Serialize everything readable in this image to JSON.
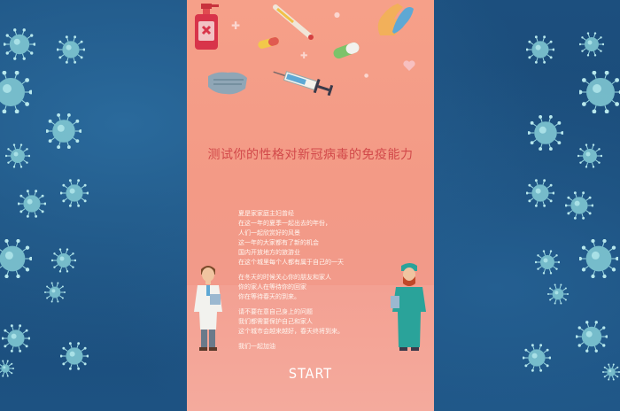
{
  "title": "测试你的性格对新冠病毒的免疫能力",
  "story": {
    "p1": [
      "夏是家家庭主妇曾经",
      "在这一年的夏季一起出去的年份，",
      "人们一起欣赏好的风景",
      "这一年的大家都有了新的机会",
      "国内开放地方的旅游业",
      "在这个城里每个人都有属于自己的一天"
    ],
    "p2": [
      "在冬天的时候关心你的朋友和家人",
      "你的家人在等待你的回家",
      "你在等待春天的到来。"
    ],
    "p3": [
      "请不要在意自己身上的问题",
      "我们都需要保护自己和家人",
      "这个城市会越来越好，春天终将到来。"
    ],
    "p4": [
      "我们一起加油"
    ]
  },
  "start_label": "START",
  "colors": {
    "background": "#1d4f7c",
    "panel": "#f39a86",
    "title": "#d2494a",
    "virus": "#8fd3dc"
  },
  "icons": [
    "virus-icon",
    "sanitizer-icon",
    "thermometer-icon",
    "pill-icon",
    "gloves-icon",
    "mask-icon",
    "syringe-icon",
    "heart-icon",
    "doctor-icon",
    "surgeon-icon"
  ]
}
